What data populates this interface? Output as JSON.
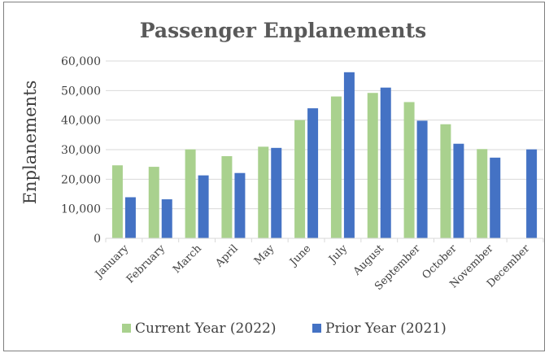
{
  "chart_data": {
    "type": "bar",
    "title": "Passenger Enplanements",
    "ylabel": "Enplanements",
    "xlabel": "",
    "ylim": [
      0,
      60000
    ],
    "yticks": [
      "0",
      "10,000",
      "20,000",
      "30,000",
      "40,000",
      "50,000",
      "60,000"
    ],
    "ytick_values": [
      0,
      10000,
      20000,
      30000,
      40000,
      50000,
      60000
    ],
    "grid": true,
    "legend_position": "bottom",
    "categories": [
      "January",
      "February",
      "March",
      "April",
      "May",
      "June",
      "July",
      "August",
      "September",
      "October",
      "November",
      "December"
    ],
    "series": [
      {
        "name": "Current Year (2022)",
        "color": "#a9d18e",
        "values": [
          24700,
          24200,
          30100,
          27800,
          31000,
          40000,
          48000,
          49200,
          46100,
          38600,
          30200,
          null
        ]
      },
      {
        "name": "Prior Year (2021)",
        "color": "#4472c4",
        "values": [
          13900,
          13200,
          21300,
          22100,
          30600,
          44000,
          56200,
          51000,
          39800,
          32000,
          27300,
          30100
        ]
      }
    ]
  }
}
